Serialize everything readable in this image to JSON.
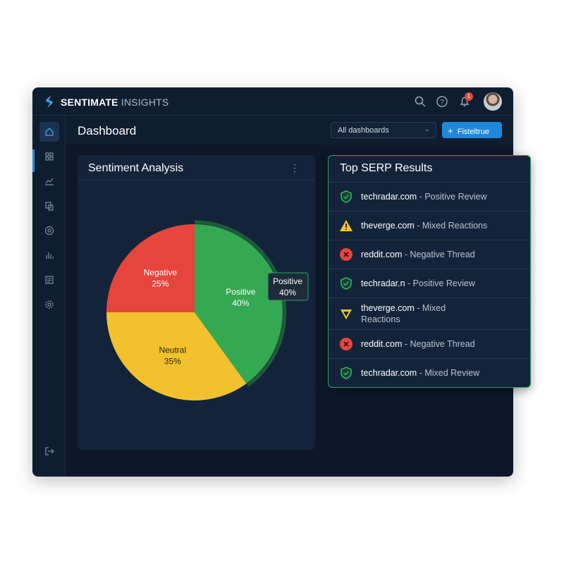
{
  "app": {
    "brand_bold": "SENTIMATE",
    "brand_light": "INSIGHTS",
    "notification_count": "1"
  },
  "header": {
    "title": "Dashboard",
    "select_value": "All dashboards",
    "button_label": "Fisteltrue"
  },
  "sidebar": {
    "items": [
      "home-icon",
      "grid-icon",
      "line-chart-icon",
      "documents-icon",
      "target-icon",
      "bar-chart-icon",
      "list-icon",
      "gear-icon"
    ],
    "bottom": "logout-icon"
  },
  "sentiment": {
    "title": "Sentiment Analysis",
    "tooltip": {
      "label": "Positive",
      "value": "40%"
    }
  },
  "chart_data": {
    "type": "pie",
    "title": "Sentiment Analysis",
    "slices": [
      {
        "label": "Positive",
        "value": 40,
        "display": "40%",
        "color": "#35a852"
      },
      {
        "label": "Neutral",
        "value": 35,
        "display": "35%",
        "color": "#f2c12e"
      },
      {
        "label": "Negative",
        "value": 25,
        "display": "25%",
        "color": "#e5453d"
      }
    ]
  },
  "serp": {
    "title": "Top SERP Results",
    "items": [
      {
        "site": "techradar.com",
        "desc": " - Positive Review",
        "status": "positive"
      },
      {
        "site": "theverge.com",
        "desc": " - Mixed Reactions",
        "status": "mixed"
      },
      {
        "site": "reddit.com",
        "desc": " - Negative Thread",
        "status": "negative"
      },
      {
        "site": "techradar.n",
        "desc": " - Positive Review",
        "status": "positive"
      },
      {
        "site": "theverge.com",
        "desc": " - Mixed Reactions",
        "status": "mixed2"
      },
      {
        "site": "reddit.com",
        "desc": " - Negative Thread",
        "status": "negative"
      },
      {
        "site": "techradar.com",
        "desc": " - Mixed Review",
        "status": "positive"
      }
    ]
  }
}
